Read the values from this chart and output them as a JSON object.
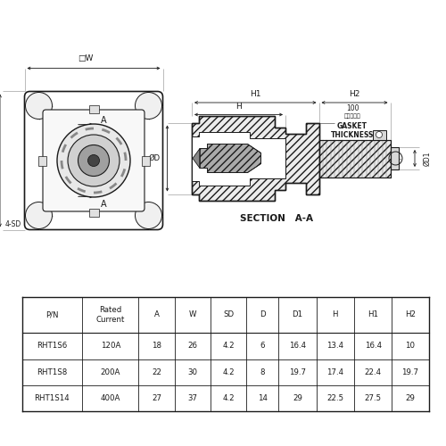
{
  "bg_color": "#ffffff",
  "line_color": "#1a1a1a",
  "table_headers": [
    "P/N",
    "Rated\nCurrent",
    "A",
    "W",
    "SD",
    "D",
    "D1",
    "H",
    "H1",
    "H2"
  ],
  "table_rows": [
    [
      "RHT1S6",
      "120A",
      "18",
      "26",
      "4.2",
      "6",
      "16.4",
      "13.4",
      "16.4",
      "10"
    ],
    [
      "RHT1S8",
      "200A",
      "22",
      "30",
      "4.2",
      "8",
      "19.7",
      "17.4",
      "22.4",
      "19.7"
    ],
    [
      "RHT1S14",
      "400A",
      "27",
      "37",
      "4.2",
      "14",
      "29",
      "22.5",
      "27.5",
      "29"
    ]
  ],
  "section_label": "SECTION   A-A",
  "fig_width": 5.0,
  "fig_height": 5.0
}
